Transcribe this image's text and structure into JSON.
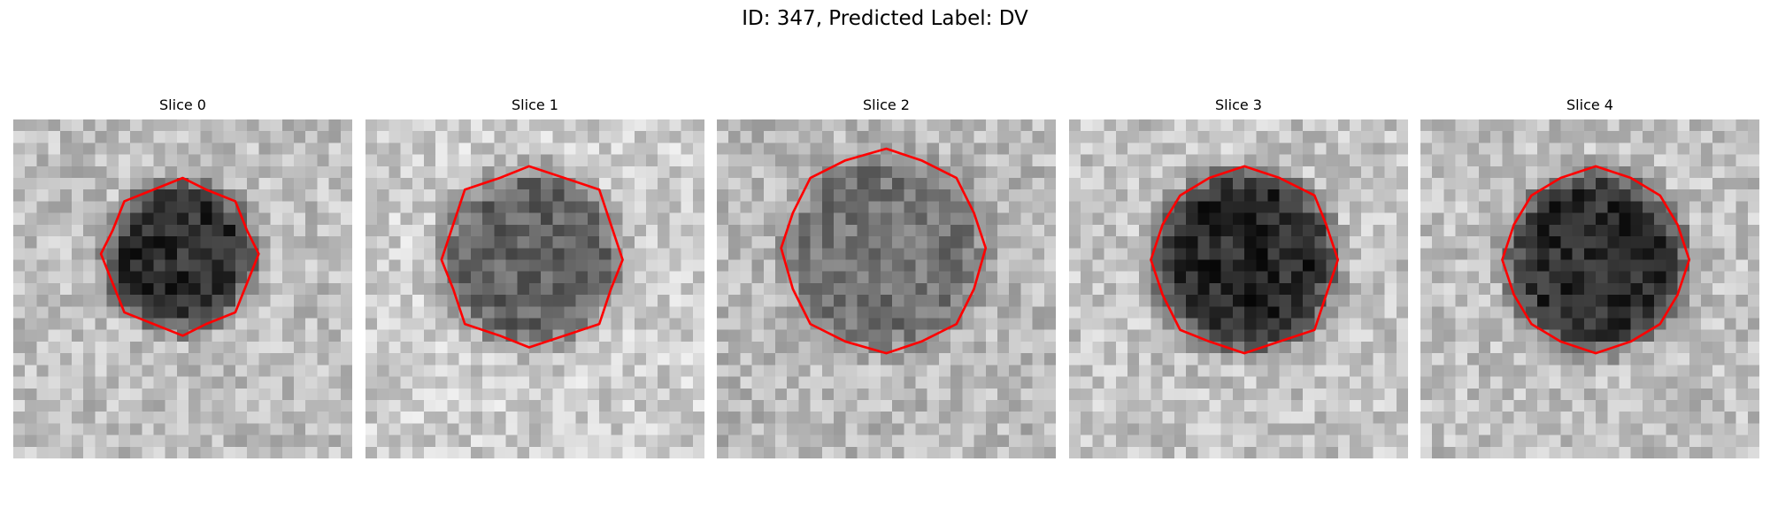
{
  "figure": {
    "title": "ID: 347, Predicted Label: DV",
    "contour_color": "#ff0000"
  },
  "panels": [
    {
      "title": "Slice 0",
      "seed": 11,
      "center": [
        14.3,
        11.7
      ],
      "radius": 6.3,
      "lesion_gray": 45,
      "bg_gray": 190
    },
    {
      "title": "Slice 1",
      "seed": 23,
      "center": [
        14.2,
        11.8
      ],
      "radius": 7.6,
      "lesion_gray": 100,
      "bg_gray": 205
    },
    {
      "title": "Slice 2",
      "seed": 37,
      "center": [
        14.4,
        11.2
      ],
      "radius": 8.5,
      "lesion_gray": 115,
      "bg_gray": 185
    },
    {
      "title": "Slice 3",
      "seed": 41,
      "center": [
        15.1,
        12.1
      ],
      "radius": 7.7,
      "lesion_gray": 40,
      "bg_gray": 195
    },
    {
      "title": "Slice 4",
      "seed": 53,
      "center": [
        15.1,
        12.1
      ],
      "radius": 7.6,
      "lesion_gray": 45,
      "bg_gray": 192
    }
  ]
}
